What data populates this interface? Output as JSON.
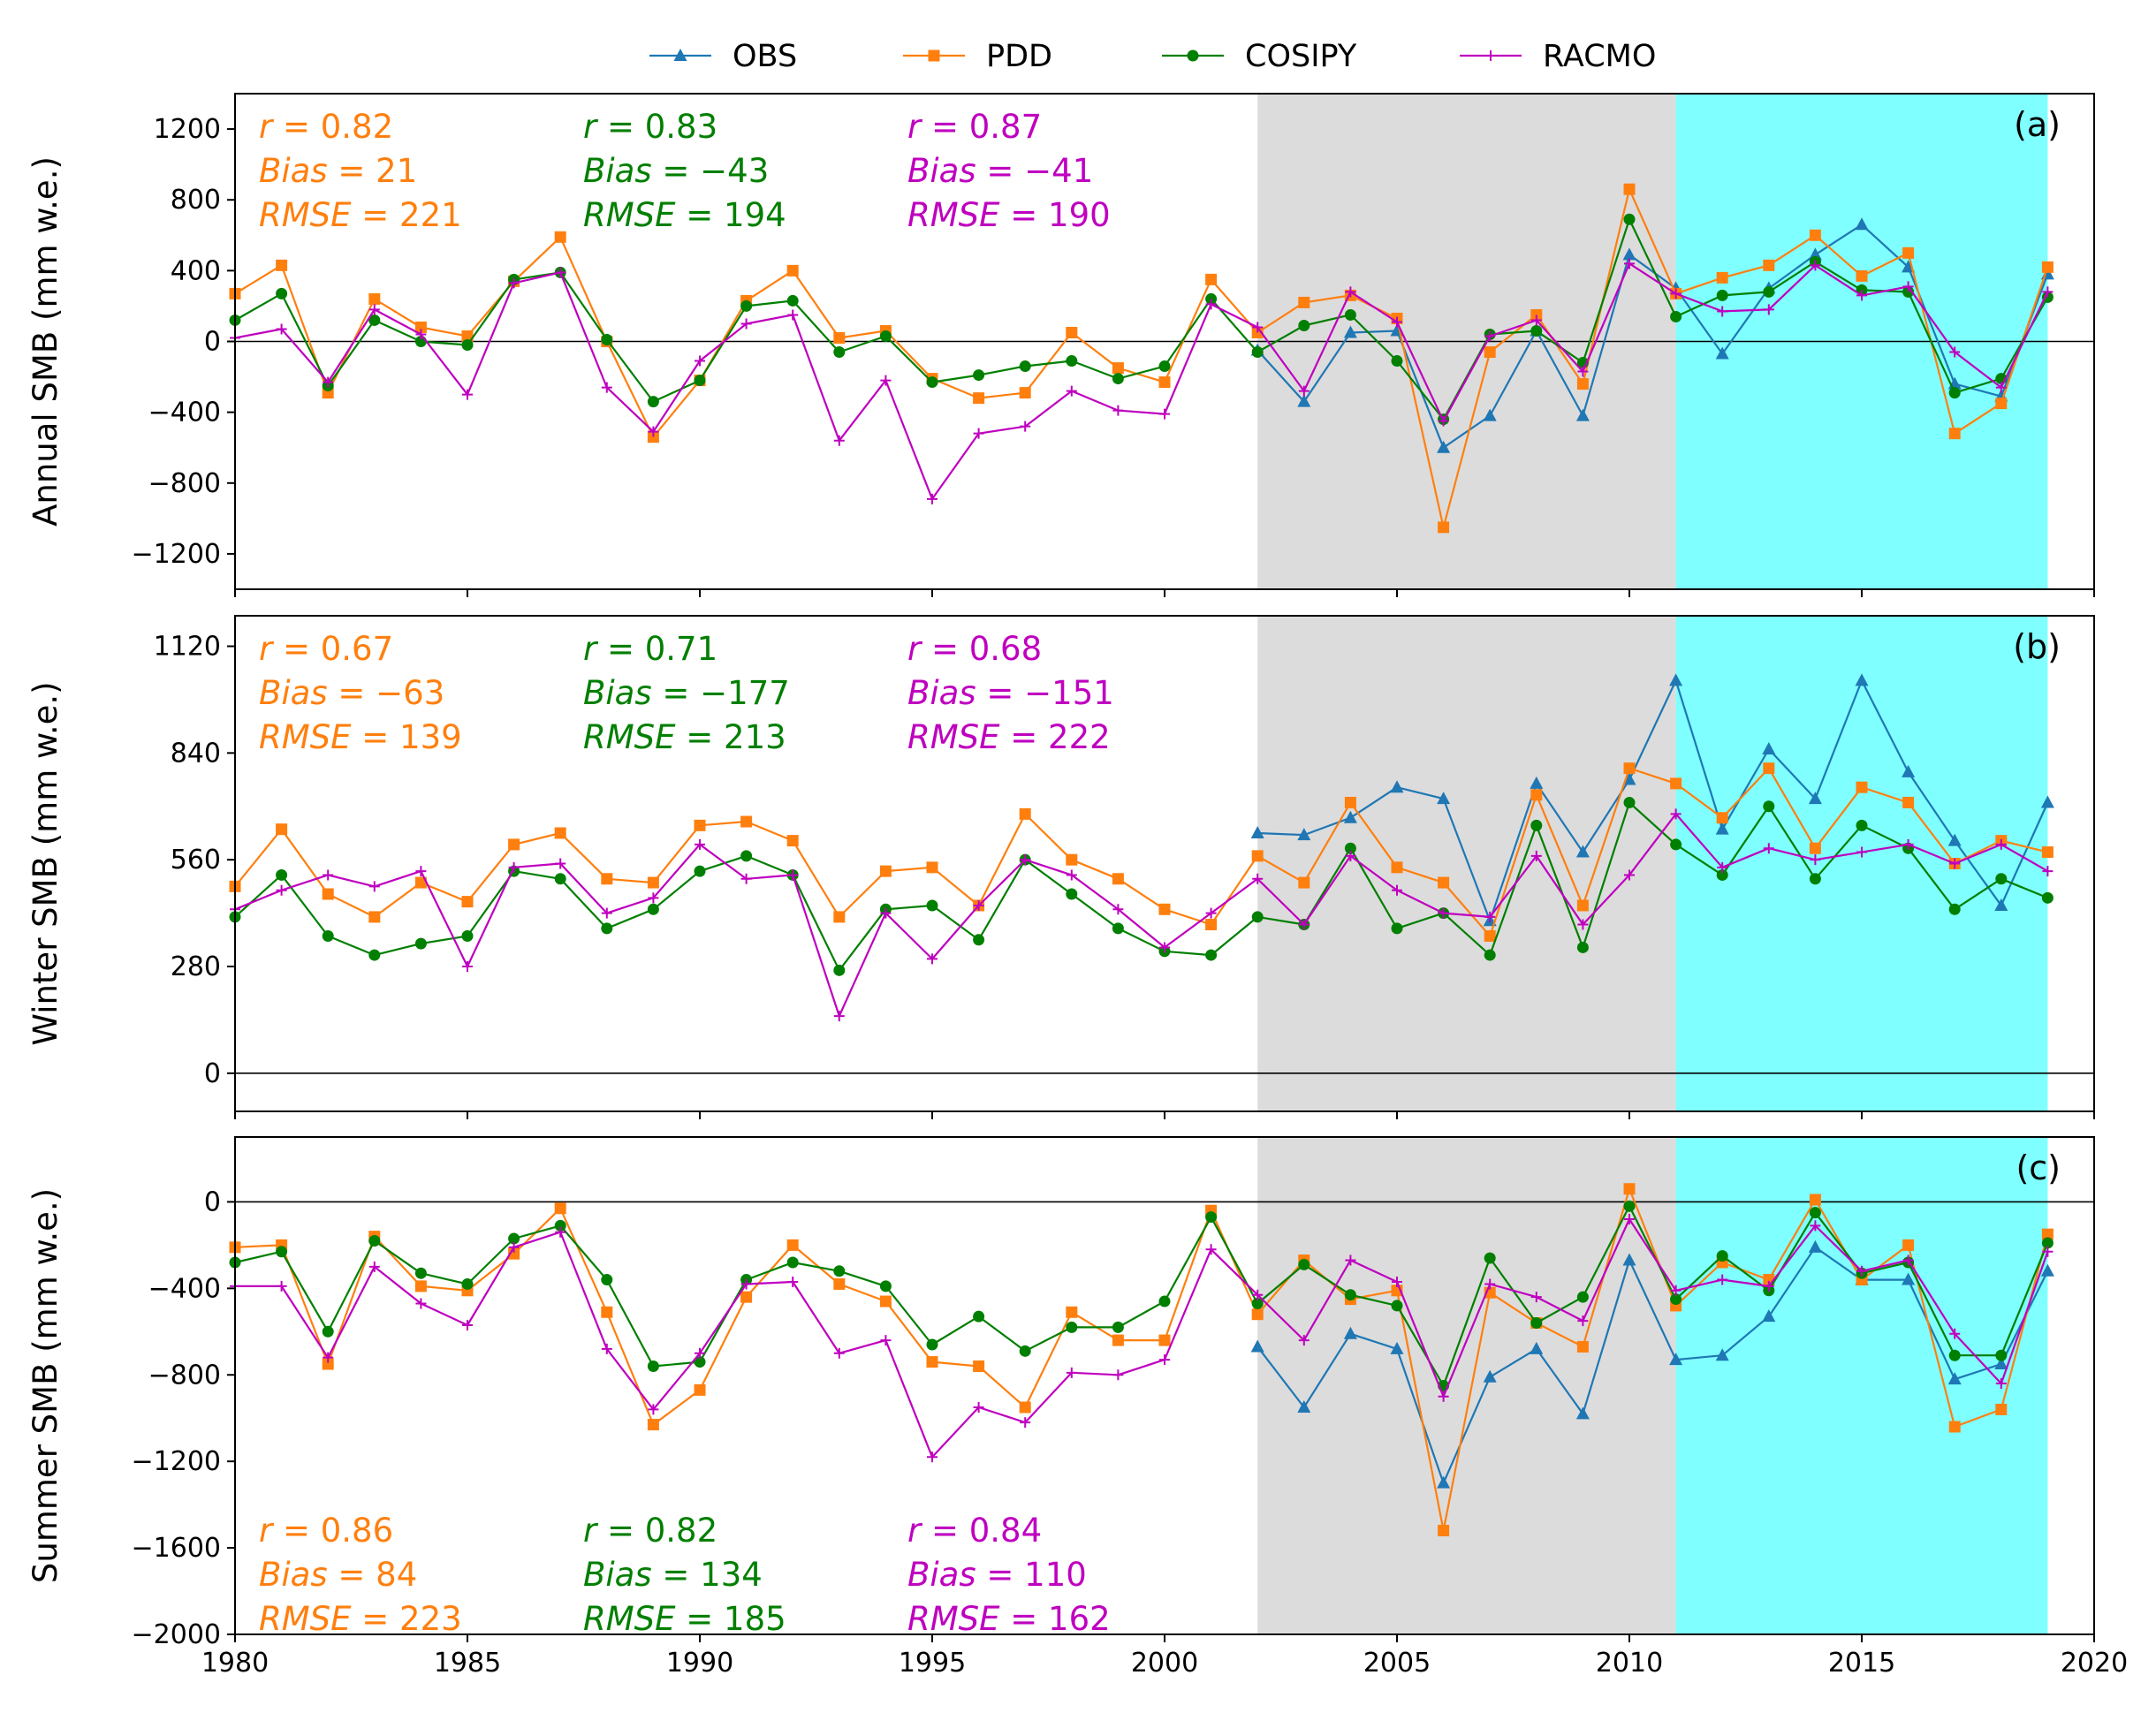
{
  "legend": {
    "entries": [
      {
        "name": "OBS",
        "color": "#1f77b4",
        "marker": "triangle"
      },
      {
        "name": "PDD",
        "color": "#ff7f0e",
        "marker": "square"
      },
      {
        "name": "COSIPY",
        "color": "#007f00",
        "marker": "circle"
      },
      {
        "name": "RACMO",
        "color": "#bf00bf",
        "marker": "plus"
      }
    ],
    "placement": "top-center"
  },
  "colors": {
    "period1_shade": "#dcdcdc",
    "period2_shade": "#7fffff",
    "zero_line": "#000000"
  },
  "chart_data": [
    {
      "type": "line",
      "panel_label": "(a)",
      "ylabel": "Annual SMB (mm w.e.)",
      "ylim": [
        -1400,
        1400
      ],
      "yticks": [
        -1200,
        -800,
        -400,
        0,
        400,
        800,
        1200
      ],
      "xlim": [
        1980,
        2020
      ],
      "shaded_periods": [
        {
          "from": 2002,
          "to": 2011,
          "color": "#dcdcdc"
        },
        {
          "from": 2011,
          "to": 2019,
          "color": "#7fffff"
        }
      ],
      "stats": [
        {
          "color": "#ff7f0e",
          "r": "0.82",
          "bias": "21",
          "rmse": "221"
        },
        {
          "color": "#007f00",
          "r": "0.83",
          "bias": "−43",
          "rmse": "194"
        },
        {
          "color": "#bf00bf",
          "r": "0.87",
          "bias": "−41",
          "rmse": "190"
        }
      ],
      "series": [
        {
          "name": "OBS",
          "x_start": 2002,
          "values": [
            -50,
            -340,
            50,
            60,
            -600,
            -420,
            60,
            -420,
            490,
            300,
            -70,
            300,
            490,
            660,
            420,
            -240,
            -310,
            380
          ]
        },
        {
          "name": "PDD",
          "x_start": 1980,
          "values": [
            270,
            430,
            -290,
            240,
            80,
            30,
            340,
            590,
            0,
            -540,
            -220,
            230,
            400,
            20,
            60,
            -210,
            -320,
            -290,
            50,
            -150,
            -230,
            350,
            50,
            220,
            260,
            130,
            -1050,
            -60,
            150,
            -240,
            860,
            270,
            360,
            430,
            600,
            370,
            500,
            -520,
            -350,
            420
          ]
        },
        {
          "name": "COSIPY",
          "x_start": 1980,
          "values": [
            120,
            270,
            -250,
            120,
            0,
            -20,
            350,
            390,
            10,
            -340,
            -220,
            200,
            230,
            -60,
            30,
            -230,
            -190,
            -140,
            -110,
            -210,
            -140,
            240,
            -60,
            90,
            150,
            -110,
            -440,
            40,
            60,
            -120,
            690,
            140,
            260,
            280,
            450,
            290,
            280,
            -290,
            -210,
            250
          ]
        },
        {
          "name": "RACMO",
          "x_start": 1980,
          "values": [
            20,
            70,
            -230,
            180,
            40,
            -300,
            330,
            390,
            -260,
            -510,
            -110,
            100,
            150,
            -560,
            -220,
            -890,
            -520,
            -480,
            -280,
            -390,
            -410,
            210,
            80,
            -280,
            280,
            110,
            -450,
            30,
            120,
            -170,
            440,
            270,
            170,
            180,
            430,
            260,
            310,
            -60,
            -260,
            280
          ]
        }
      ]
    },
    {
      "type": "line",
      "panel_label": "(b)",
      "ylabel": "Winter SMB (mm w.e.)",
      "ylim": [
        -100,
        1200
      ],
      "yticks": [
        0,
        280,
        560,
        840,
        1120
      ],
      "xlim": [
        1980,
        2020
      ],
      "shaded_periods": [
        {
          "from": 2002,
          "to": 2011,
          "color": "#dcdcdc"
        },
        {
          "from": 2011,
          "to": 2019,
          "color": "#7fffff"
        }
      ],
      "stats": [
        {
          "color": "#ff7f0e",
          "r": "0.67",
          "bias": "−63",
          "rmse": "139"
        },
        {
          "color": "#007f00",
          "r": "0.71",
          "bias": "−177",
          "rmse": "213"
        },
        {
          "color": "#bf00bf",
          "r": "0.68",
          "bias": "−151",
          "rmse": "222"
        }
      ],
      "series": [
        {
          "name": "OBS",
          "x_start": 2002,
          "values": [
            630,
            625,
            670,
            750,
            720,
            400,
            760,
            580,
            770,
            1030,
            640,
            850,
            720,
            1030,
            790,
            610,
            440,
            710
          ]
        },
        {
          "name": "PDD",
          "x_start": 1980,
          "values": [
            490,
            640,
            470,
            410,
            500,
            450,
            600,
            630,
            510,
            500,
            650,
            660,
            610,
            410,
            530,
            540,
            440,
            680,
            560,
            510,
            430,
            390,
            570,
            500,
            710,
            540,
            500,
            360,
            730,
            440,
            800,
            760,
            670,
            800,
            590,
            750,
            710,
            550,
            610,
            580
          ]
        },
        {
          "name": "COSIPY",
          "x_start": 1980,
          "values": [
            410,
            520,
            360,
            310,
            340,
            360,
            530,
            510,
            380,
            430,
            530,
            570,
            520,
            270,
            430,
            440,
            350,
            560,
            470,
            380,
            320,
            310,
            410,
            390,
            590,
            380,
            420,
            310,
            650,
            330,
            710,
            600,
            520,
            700,
            510,
            650,
            590,
            430,
            510,
            460
          ]
        },
        {
          "name": "RACMO",
          "x_start": 1980,
          "values": [
            430,
            480,
            520,
            490,
            530,
            280,
            540,
            550,
            420,
            460,
            600,
            510,
            520,
            150,
            420,
            300,
            440,
            560,
            520,
            430,
            330,
            420,
            510,
            390,
            570,
            480,
            420,
            410,
            570,
            390,
            520,
            680,
            540,
            590,
            560,
            580,
            600,
            550,
            600,
            530
          ]
        }
      ]
    },
    {
      "type": "line",
      "panel_label": "(c)",
      "ylabel": "Summer SMB (mm w.e.)",
      "ylim": [
        -2000,
        300
      ],
      "yticks": [
        -2000,
        -1600,
        -1200,
        -800,
        -400,
        0
      ],
      "xlim": [
        1980,
        2020
      ],
      "xticks": [
        1980,
        1985,
        1990,
        1995,
        2000,
        2005,
        2010,
        2015,
        2020
      ],
      "shaded_periods": [
        {
          "from": 2002,
          "to": 2011,
          "color": "#dcdcdc"
        },
        {
          "from": 2011,
          "to": 2019,
          "color": "#7fffff"
        }
      ],
      "stats": [
        {
          "color": "#ff7f0e",
          "r": "0.86",
          "bias": "84",
          "rmse": "223"
        },
        {
          "color": "#007f00",
          "r": "0.82",
          "bias": "134",
          "rmse": "185"
        },
        {
          "color": "#bf00bf",
          "r": "0.84",
          "bias": "110",
          "rmse": "162"
        }
      ],
      "series": [
        {
          "name": "OBS",
          "x_start": 2002,
          "values": [
            -670,
            -950,
            -610,
            -680,
            -1300,
            -810,
            -680,
            -980,
            -270,
            -730,
            -710,
            -530,
            -210,
            -360,
            -360,
            -820,
            -750,
            -320
          ]
        },
        {
          "name": "PDD",
          "x_start": 1980,
          "values": [
            -210,
            -200,
            -750,
            -160,
            -390,
            -410,
            -240,
            -30,
            -510,
            -1030,
            -870,
            -440,
            -200,
            -380,
            -460,
            -740,
            -760,
            -950,
            -510,
            -640,
            -640,
            -40,
            -520,
            -270,
            -450,
            -410,
            -1520,
            -420,
            -560,
            -670,
            60,
            -480,
            -280,
            -360,
            10,
            -360,
            -200,
            -1040,
            -960,
            -150
          ]
        },
        {
          "name": "COSIPY",
          "x_start": 1980,
          "values": [
            -280,
            -230,
            -600,
            -180,
            -330,
            -380,
            -170,
            -110,
            -360,
            -760,
            -740,
            -360,
            -280,
            -320,
            -390,
            -660,
            -530,
            -690,
            -580,
            -580,
            -460,
            -70,
            -470,
            -290,
            -430,
            -480,
            -850,
            -260,
            -560,
            -440,
            -20,
            -450,
            -250,
            -410,
            -50,
            -330,
            -280,
            -710,
            -710,
            -190
          ]
        },
        {
          "name": "RACMO",
          "x_start": 1980,
          "values": [
            -390,
            -390,
            -720,
            -300,
            -470,
            -570,
            -210,
            -140,
            -680,
            -960,
            -700,
            -380,
            -370,
            -700,
            -640,
            -1180,
            -950,
            -1020,
            -790,
            -800,
            -730,
            -220,
            -430,
            -640,
            -270,
            -370,
            -900,
            -380,
            -440,
            -550,
            -80,
            -410,
            -360,
            -390,
            -110,
            -320,
            -270,
            -610,
            -840,
            -230
          ]
        }
      ]
    }
  ]
}
